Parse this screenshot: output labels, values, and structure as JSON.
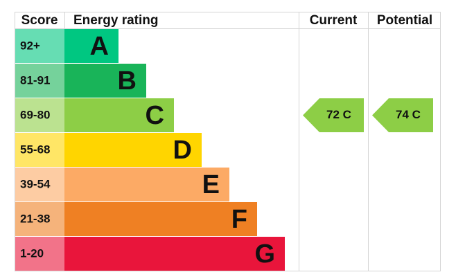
{
  "chart_data": {
    "type": "epc",
    "headers": {
      "score": "Score",
      "rating": "Energy rating",
      "current": "Current",
      "potential": "Potential"
    },
    "bands": [
      {
        "score": "92+",
        "letter": "A",
        "color": "#00c781"
      },
      {
        "score": "81-91",
        "letter": "B",
        "color": "#19b459"
      },
      {
        "score": "69-80",
        "letter": "C",
        "color": "#8dce46"
      },
      {
        "score": "55-68",
        "letter": "D",
        "color": "#ffd500"
      },
      {
        "score": "39-54",
        "letter": "E",
        "color": "#fcaa65"
      },
      {
        "score": "21-38",
        "letter": "F",
        "color": "#ef8023"
      },
      {
        "score": "1-20",
        "letter": "G",
        "color": "#e9153b"
      }
    ],
    "current": {
      "value": 72,
      "label": "72 C"
    },
    "potential": {
      "value": 74,
      "label": "74 C"
    }
  }
}
